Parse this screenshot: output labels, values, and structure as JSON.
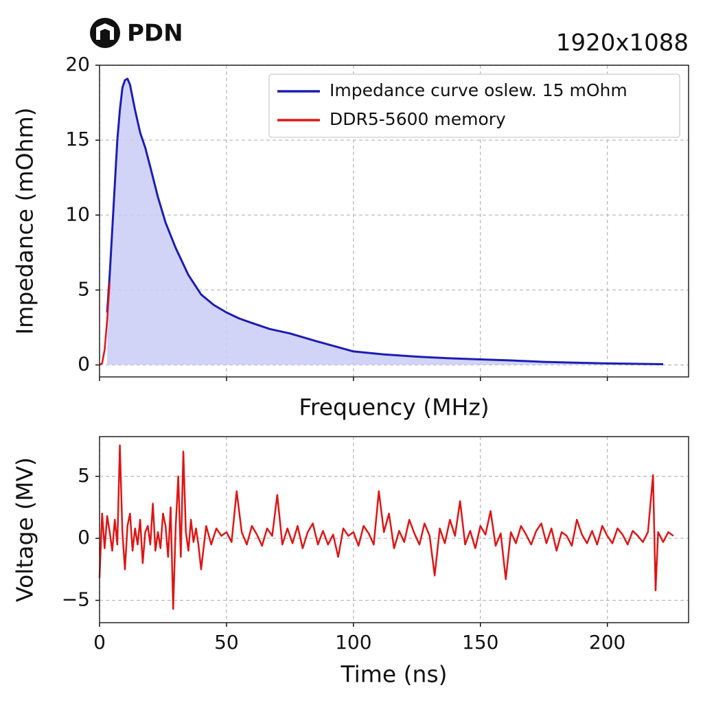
{
  "header": {
    "logo_text": "PDN",
    "resolution": "1920x1088"
  },
  "chart_data": [
    {
      "type": "line",
      "fill": true,
      "xlabel": "Frequency (MHz)",
      "ylabel": "Impedance (mOhm)",
      "xlim": [
        0,
        232
      ],
      "ylim": [
        -0.8,
        20
      ],
      "xticks": [
        0,
        50,
        100,
        150,
        200
      ],
      "show_xtick_labels": false,
      "yticks": [
        0,
        5,
        10,
        15,
        20
      ],
      "grid": true,
      "legend": "upper right",
      "series": [
        {
          "name": "Impedance curve oslew. 15 mOhm",
          "color": "#1c1cb4",
          "x": [
            3,
            4,
            5,
            6,
            7,
            8,
            9,
            10,
            11,
            12,
            14,
            16,
            18,
            20,
            23,
            26,
            30,
            35,
            40,
            45,
            50,
            55,
            60,
            67,
            75,
            85,
            100,
            112,
            125,
            137,
            150,
            162,
            175,
            187,
            200,
            212,
            222
          ],
          "values": [
            3.5,
            6,
            9,
            12,
            15,
            17,
            18.5,
            19,
            19.1,
            18.7,
            17,
            15.5,
            14.5,
            13.2,
            11.2,
            9.5,
            7.8,
            6,
            4.7,
            4,
            3.5,
            3.1,
            2.8,
            2.4,
            2.1,
            1.6,
            0.9,
            0.7,
            0.55,
            0.45,
            0.37,
            0.3,
            0.2,
            0.15,
            0.1,
            0.07,
            0.05
          ]
        },
        {
          "name": "DDR5-5600 memory",
          "color": "#e01414",
          "x": [
            0,
            1,
            2,
            3,
            4
          ],
          "values": [
            0,
            0.1,
            1,
            3,
            5.5
          ]
        }
      ]
    },
    {
      "type": "line",
      "xlabel": "Time (ns)",
      "ylabel": "Voltage (MV)",
      "xlim": [
        0,
        232
      ],
      "ylim": [
        -6.8,
        8.2
      ],
      "xticks": [
        0,
        50,
        100,
        150,
        200
      ],
      "show_xtick_labels": true,
      "yticks": [
        {
          "value": -5,
          "label": "−5"
        },
        0,
        5
      ],
      "grid": true,
      "series": [
        {
          "color": "#e01414",
          "x": [
            0,
            1,
            2,
            3,
            4,
            5,
            6,
            7,
            8,
            9,
            10,
            11,
            12,
            13,
            14,
            15,
            16,
            17,
            18,
            19,
            20,
            21,
            22,
            23,
            24,
            25,
            26,
            27,
            28,
            29,
            30,
            31,
            32,
            33,
            34,
            35,
            36,
            37,
            38,
            39,
            40,
            42,
            44,
            46,
            48,
            50,
            52,
            54,
            56,
            58,
            60,
            62,
            64,
            66,
            68,
            70,
            72,
            74,
            76,
            78,
            80,
            82,
            84,
            86,
            88,
            90,
            92,
            94,
            96,
            98,
            100,
            102,
            104,
            106,
            108,
            110,
            112,
            114,
            116,
            118,
            120,
            122,
            124,
            126,
            128,
            130,
            132,
            134,
            136,
            138,
            140,
            142,
            144,
            146,
            148,
            150,
            152,
            154,
            156,
            158,
            160,
            162,
            164,
            166,
            168,
            170,
            172,
            174,
            176,
            178,
            180,
            182,
            184,
            186,
            188,
            190,
            192,
            194,
            196,
            198,
            200,
            202,
            204,
            206,
            208,
            210,
            212,
            214,
            216,
            218,
            219,
            220,
            222,
            224,
            226
          ],
          "values": [
            -3.2,
            2,
            -0.8,
            1.8,
            0.5,
            -1,
            1.5,
            -0.5,
            7.5,
            0.5,
            -2.5,
            1,
            2,
            -1,
            0.8,
            -0.5,
            1.5,
            -2,
            0.5,
            1,
            -0.5,
            2.8,
            -1,
            0.5,
            -0.8,
            2,
            1,
            -1.5,
            2.5,
            -5.7,
            1,
            5,
            -1.5,
            7,
            0.5,
            -1,
            1.5,
            -0.3,
            0.8,
            -0.6,
            -2.5,
            1,
            -0.5,
            0.8,
            0.2,
            0.5,
            -0.3,
            3.8,
            0.5,
            -0.5,
            1,
            0.3,
            -0.6,
            0.8,
            0.2,
            3.5,
            -0.5,
            0.8,
            -0.4,
            1,
            -0.8,
            0.5,
            1.2,
            -0.5,
            0.6,
            -0.5,
            0.3,
            -1.5,
            0.8,
            0.2,
            0.5,
            -0.6,
            1,
            0.4,
            -0.5,
            3.8,
            0.5,
            2,
            -0.8,
            0.6,
            -0.3,
            1.5,
            0.4,
            -0.5,
            1.2,
            0.2,
            -3,
            0.8,
            -0.4,
            1.5,
            0.2,
            3,
            -0.5,
            0.6,
            -0.8,
            1,
            0.3,
            2.2,
            -0.6,
            0.4,
            -3.3,
            0.5,
            -0.4,
            1,
            0.3,
            -0.5,
            0.6,
            1.2,
            -0.4,
            0.8,
            -1,
            0.5,
            0.2,
            -0.6,
            1.5,
            0.3,
            -0.4,
            0.6,
            -0.5,
            1,
            0.2,
            -0.4,
            0.8,
            0.3,
            -0.5,
            0.6,
            0.2,
            -0.3,
            0.5,
            5.1,
            -4.2,
            0.5,
            -0.3,
            0.5,
            0.2
          ]
        }
      ]
    }
  ]
}
